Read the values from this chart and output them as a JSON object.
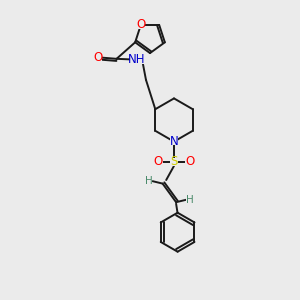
{
  "bg_color": "#ebebeb",
  "bond_color": "#1a1a1a",
  "atom_colors": {
    "O": "#ff0000",
    "N": "#0000cc",
    "S": "#cccc00",
    "H": "#4a8a6a",
    "C": "#1a1a1a"
  }
}
